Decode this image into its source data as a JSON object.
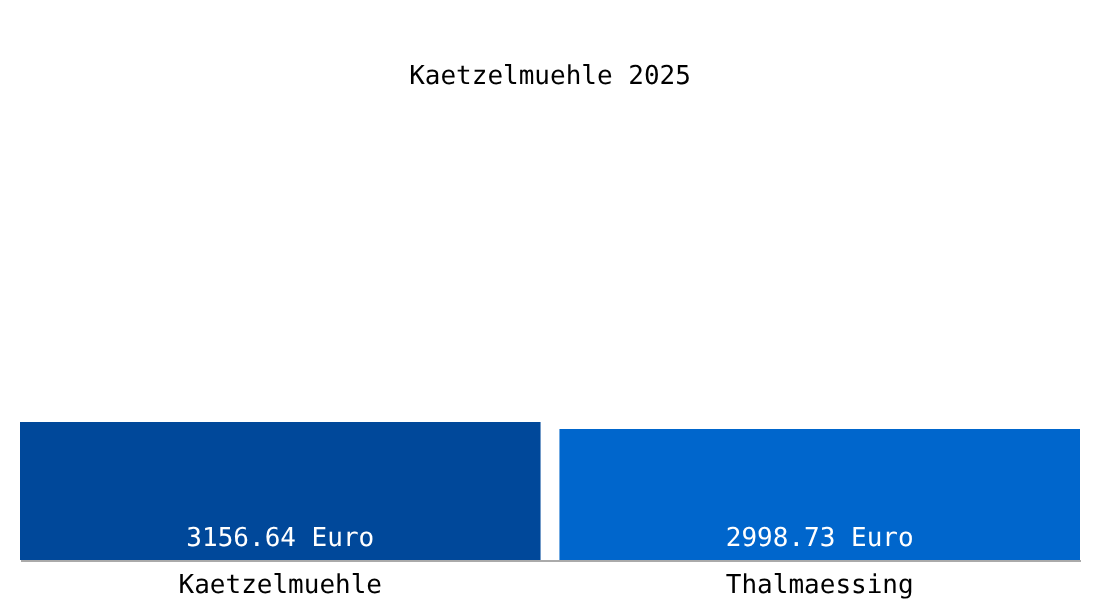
{
  "chart_data": {
    "type": "bar",
    "title": "Kaetzelmuehle 2025",
    "categories": [
      "Kaetzelmuehle",
      "Thalmaessing"
    ],
    "values": [
      3156.64,
      2998.73
    ],
    "colors": [
      "#00489a",
      "#0066cc"
    ],
    "value_labels": [
      "3156.64 Euro",
      "2998.73 Euro"
    ]
  }
}
